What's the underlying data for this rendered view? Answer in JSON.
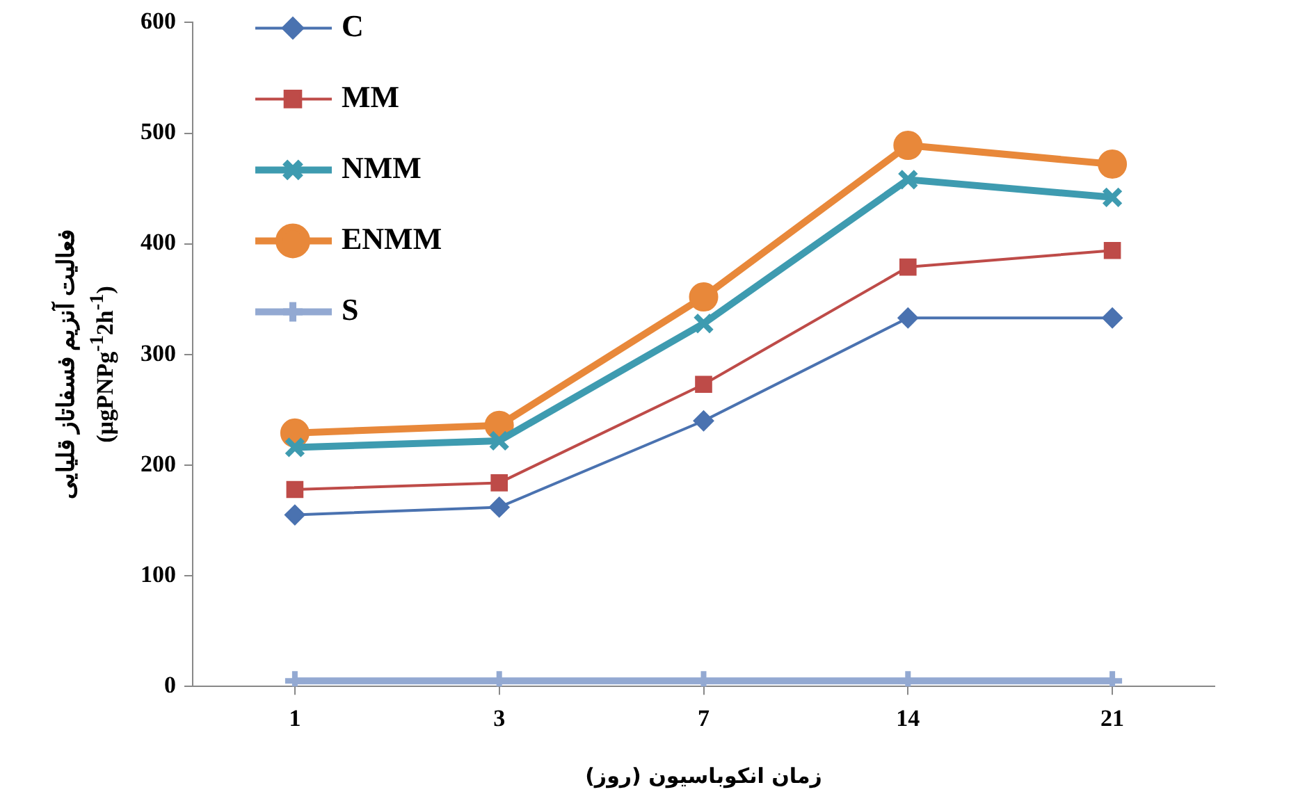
{
  "chart_data": {
    "type": "line",
    "xlabel": "زمان انکوباسیون (روز)",
    "ylabel": "فعالیت آنزیم فسفاتاز قلیایی\n(µgPNPg$^{-1}$2h$^{-1}$)",
    "categories": [
      "1",
      "3",
      "7",
      "14",
      "21"
    ],
    "series": [
      {
        "name": "C",
        "color": "#4a72b0",
        "marker": "diamond",
        "values": [
          155,
          162,
          240,
          333,
          333
        ]
      },
      {
        "name": "MM",
        "color": "#be4b48",
        "marker": "square",
        "values": [
          178,
          184,
          273,
          379,
          394
        ]
      },
      {
        "name": "NMM",
        "color": "#3e9bb0",
        "marker": "cross",
        "values": [
          216,
          222,
          328,
          458,
          442
        ]
      },
      {
        "name": "ENMM",
        "color": "#e8883a",
        "marker": "circle",
        "values": [
          229,
          236,
          352,
          489,
          472
        ]
      },
      {
        "name": "S",
        "color": "#93a9d2",
        "marker": "cross",
        "values": [
          5,
          5,
          5,
          5,
          5
        ]
      }
    ],
    "ylim": [
      0,
      600
    ],
    "yticks": [
      0,
      100,
      200,
      300,
      400,
      500,
      600
    ],
    "grid": false,
    "legend": "top left",
    "line_style": "solid"
  }
}
